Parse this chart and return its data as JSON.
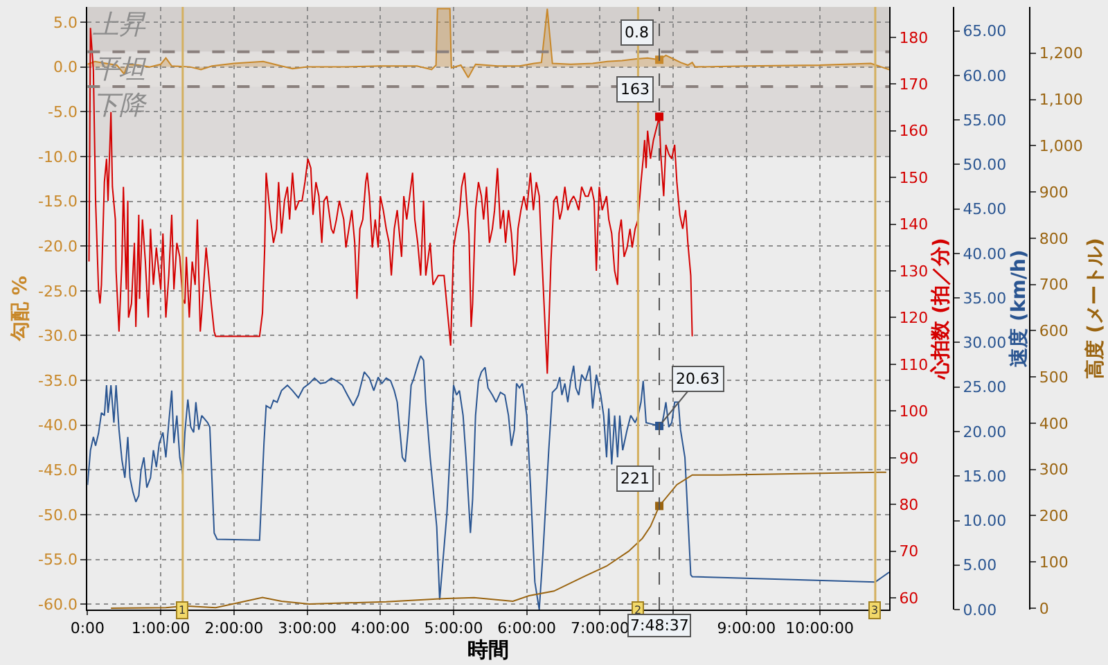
{
  "chart_data": [
    {
      "type": "line",
      "xlabel": "時間",
      "ylabel": "勾配 %",
      "y2label": "心拍数 (拍／分)",
      "y3label": "速度 (km/h)",
      "xlim": [
        0,
        10.95
      ],
      "xticks": [
        {
          "value": 0,
          "label": "0:00"
        },
        {
          "value": 1,
          "label": "1:00:00"
        },
        {
          "value": 2,
          "label": "2:00:00"
        },
        {
          "value": 3,
          "label": "3:00:00"
        },
        {
          "value": 4,
          "label": "4:00:00"
        },
        {
          "value": 5,
          "label": "5:00:00"
        },
        {
          "value": 6,
          "label": "6:00:00"
        },
        {
          "value": 7,
          "label": "7:00:00"
        },
        {
          "value": 8,
          "label": null
        },
        {
          "value": 9,
          "label": "9:00:00"
        },
        {
          "value": 10,
          "label": "10:00:00"
        }
      ],
      "ylim": [
        -60.6,
        6.7
      ],
      "yticks": [
        {
          "value": 5,
          "label": "5.0"
        },
        {
          "value": 0,
          "label": "0.0"
        },
        {
          "value": -5,
          "label": "-5.0"
        },
        {
          "value": -10,
          "label": "-10.0"
        },
        {
          "value": -15,
          "label": "-15.0"
        },
        {
          "value": -20,
          "label": "-20.0"
        },
        {
          "value": -25,
          "label": "-25.0"
        },
        {
          "value": -30,
          "label": "-30.0"
        },
        {
          "value": -35,
          "label": "-35.0"
        },
        {
          "value": -40,
          "label": "-40.0"
        },
        {
          "value": -45,
          "label": "-45.0"
        },
        {
          "value": -50,
          "label": "-50.0"
        },
        {
          "value": -55,
          "label": "-55.0"
        },
        {
          "value": -60,
          "label": "-60.0"
        }
      ],
      "y2lim": [
        57.5,
        186.5
      ],
      "y2ticks": [
        60,
        70,
        80,
        90,
        100,
        110,
        120,
        130,
        140,
        150,
        160,
        170,
        180
      ],
      "y3lim": [
        0,
        67.7
      ],
      "y3ticks": [
        {
          "value": 0,
          "label": "0.00"
        },
        {
          "value": 5,
          "label": "5.00"
        },
        {
          "value": 10,
          "label": "10.00"
        },
        {
          "value": 15,
          "label": "15.00"
        },
        {
          "value": 20,
          "label": "20.00"
        },
        {
          "value": 25,
          "label": "25.00"
        },
        {
          "value": 30,
          "label": "30.00"
        },
        {
          "value": 35,
          "label": "35.00"
        },
        {
          "value": 40,
          "label": "40.00"
        },
        {
          "value": 45,
          "label": "45.00"
        },
        {
          "value": 50,
          "label": "50.00"
        },
        {
          "value": 55,
          "label": "55.00"
        },
        {
          "value": 60,
          "label": "60.00"
        },
        {
          "value": 65,
          "label": "65.00"
        }
      ],
      "grid": true,
      "bands": [
        {
          "axis": "y",
          "from": 1.7,
          "to": 6.7,
          "label": "上昇",
          "color": "#d3cfcd"
        },
        {
          "axis": "y",
          "from": -2.2,
          "to": 1.7,
          "label": "平坦",
          "color": "#e2dfdd"
        },
        {
          "axis": "y",
          "from": -10,
          "to": -2.2,
          "label": "下降",
          "color": "#dcd9d8"
        }
      ],
      "ref_lines": [
        {
          "axis": "y",
          "value": 1.7,
          "color": "#8a807d",
          "line_style": "dashed"
        },
        {
          "axis": "y",
          "value": -2.2,
          "color": "#8a807d",
          "line_style": "dashed"
        },
        {
          "axis": "x",
          "value": 1.3,
          "color": "#d4b060",
          "line_style": "solid"
        },
        {
          "axis": "x",
          "value": 7.52,
          "color": "#d4b060",
          "line_style": "solid"
        },
        {
          "axis": "x",
          "value": 10.76,
          "color": "#d4b060",
          "line_style": "solid"
        },
        {
          "axis": "x",
          "value": 7.81,
          "color": "#555555",
          "line_style": "dashed"
        }
      ],
      "annotations": [
        {
          "text": "1",
          "x": 1.3,
          "y": -60.6
        },
        {
          "text": "2",
          "x": 7.52,
          "y": -60.6
        },
        {
          "text": "3",
          "x": 10.76,
          "y": -60.6
        },
        {
          "text": "7:48:37",
          "x": 7.81,
          "y": -60.6
        }
      ],
      "series": [
        {
          "type": "area",
          "axis": "y",
          "color": "#c8882a",
          "x": [
            0.0,
            0.1,
            0.25,
            0.4,
            0.5,
            0.55,
            0.7,
            0.85,
            1.0,
            1.07,
            1.15,
            1.4,
            1.55,
            1.7,
            2.0,
            2.4,
            2.6,
            2.8,
            3.0,
            3.5,
            4.0,
            4.5,
            4.7,
            4.76,
            4.78,
            4.95,
            4.97,
            5.1,
            5.2,
            5.3,
            5.6,
            5.9,
            6.1,
            6.2,
            6.28,
            6.35,
            6.6,
            6.9,
            7.1,
            7.3,
            7.5,
            7.65,
            7.81,
            7.9,
            8.0,
            8.1,
            8.2,
            8.26,
            8.3,
            9.0,
            10.0,
            10.7,
            10.95
          ],
          "values": [
            0.3,
            0.6,
            0.4,
            0.2,
            -0.8,
            0.3,
            0.2,
            0.0,
            0.3,
            1.0,
            0.1,
            0.0,
            -0.3,
            0.1,
            0.4,
            0.6,
            0.2,
            -0.2,
            0.0,
            0.0,
            0.1,
            0.1,
            -0.3,
            0.2,
            6.5,
            6.5,
            -0.1,
            0.2,
            -1.2,
            0.3,
            0.1,
            0.1,
            0.4,
            0.5,
            6.5,
            0.4,
            0.3,
            0.4,
            0.6,
            0.7,
            0.9,
            1.0,
            0.8,
            1.3,
            0.9,
            0.5,
            0.2,
            0.5,
            0.0,
            0.1,
            0.2,
            0.4,
            -0.3
          ],
          "value_labels": [
            null,
            null,
            null,
            null,
            null,
            null,
            null,
            null,
            null,
            null,
            null,
            null,
            null,
            null,
            null,
            null,
            null,
            null,
            null,
            null,
            null,
            null,
            null,
            null,
            null,
            null,
            null,
            null,
            null,
            null,
            null,
            null,
            null,
            null,
            null,
            null,
            null,
            null,
            null,
            null,
            null,
            null,
            "0.8",
            null,
            null,
            null,
            null,
            null,
            null,
            null,
            null,
            null,
            null
          ]
        },
        {
          "axis": "y2",
          "color": "#d40000",
          "x": [
            0.02,
            0.04,
            0.08,
            0.11,
            0.15,
            0.17,
            0.19,
            0.23,
            0.26,
            0.28,
            0.32,
            0.34,
            0.38,
            0.39,
            0.43,
            0.47,
            0.49,
            0.53,
            0.55,
            0.56,
            0.6,
            0.64,
            0.66,
            0.7,
            0.71,
            0.75,
            0.79,
            0.83,
            0.86,
            0.9,
            0.94,
            0.96,
            1.0,
            1.03,
            1.07,
            1.11,
            1.15,
            1.18,
            1.22,
            1.26,
            1.3,
            1.33,
            1.35,
            1.39,
            1.43,
            1.47,
            1.5,
            1.54,
            1.56,
            1.62,
            1.65,
            1.69,
            1.73,
            1.75,
            2.35,
            2.39,
            2.42,
            2.44,
            2.5,
            2.54,
            2.58,
            2.61,
            2.65,
            2.69,
            2.73,
            2.76,
            2.8,
            2.84,
            2.89,
            2.93,
            2.97,
            3.01,
            3.05,
            3.08,
            3.12,
            3.16,
            3.2,
            3.23,
            3.27,
            3.33,
            3.36,
            3.4,
            3.44,
            3.5,
            3.53,
            3.57,
            3.61,
            3.65,
            3.68,
            3.72,
            3.76,
            3.8,
            3.82,
            3.85,
            3.89,
            3.93,
            3.97,
            4.0,
            4.04,
            4.08,
            4.12,
            4.15,
            4.19,
            4.23,
            4.29,
            4.32,
            4.36,
            4.4,
            4.44,
            4.47,
            4.51,
            4.55,
            4.59,
            4.62,
            4.68,
            4.72,
            4.79,
            4.87,
            4.96,
            5.0,
            5.04,
            5.08,
            5.11,
            5.15,
            5.21,
            5.24,
            5.26,
            5.3,
            5.34,
            5.38,
            5.41,
            5.45,
            5.49,
            5.53,
            5.56,
            5.6,
            5.64,
            5.68,
            5.71,
            5.75,
            5.79,
            5.83,
            5.86,
            5.88,
            5.92,
            5.96,
            6.0,
            6.05,
            6.09,
            6.13,
            6.17,
            6.2,
            6.28,
            6.33,
            6.37,
            6.41,
            6.45,
            6.48,
            6.52,
            6.56,
            6.6,
            6.64,
            6.67,
            6.71,
            6.75,
            6.8,
            6.84,
            6.88,
            6.92,
            6.95,
            6.99,
            7.03,
            7.09,
            7.12,
            7.16,
            7.2,
            7.24,
            7.26,
            7.29,
            7.33,
            7.37,
            7.41,
            7.44,
            7.48,
            7.52,
            7.56,
            7.59,
            7.61,
            7.63,
            7.65,
            7.69,
            7.73,
            7.81,
            7.83,
            7.87,
            7.9,
            7.94,
            7.98,
            8.02,
            8.05,
            8.09,
            8.13,
            8.17,
            8.2,
            8.24,
            8.26
          ],
          "values": [
            132,
            182,
            173,
            145,
            126,
            123,
            127,
            149,
            154,
            145,
            164,
            148,
            141,
            130,
            117,
            132,
            148,
            126,
            145,
            120,
            123,
            136,
            118,
            142,
            124,
            141,
            132,
            120,
            139,
            127,
            135,
            132,
            126,
            138,
            120,
            129,
            142,
            126,
            136,
            133,
            124,
            123,
            133,
            120,
            132,
            127,
            141,
            117,
            121,
            135,
            130,
            123,
            117,
            116,
            116,
            121,
            135,
            151,
            141,
            136,
            139,
            149,
            138,
            145,
            148,
            141,
            151,
            143,
            145,
            145,
            149,
            154,
            152,
            142,
            149,
            146,
            136,
            145,
            146,
            139,
            138,
            141,
            145,
            141,
            135,
            139,
            143,
            136,
            124,
            139,
            141,
            149,
            151,
            146,
            135,
            141,
            135,
            146,
            143,
            139,
            136,
            129,
            139,
            143,
            133,
            146,
            141,
            146,
            151,
            141,
            136,
            129,
            145,
            129,
            136,
            127,
            129,
            129,
            114,
            135,
            139,
            142,
            148,
            151,
            138,
            118,
            123,
            143,
            149,
            146,
            141,
            148,
            136,
            139,
            143,
            152,
            139,
            143,
            136,
            143,
            138,
            129,
            132,
            139,
            143,
            146,
            143,
            151,
            143,
            149,
            146,
            135,
            108,
            132,
            145,
            146,
            141,
            143,
            148,
            143,
            145,
            146,
            145,
            143,
            148,
            146,
            146,
            148,
            145,
            130,
            148,
            143,
            146,
            141,
            138,
            130,
            127,
            138,
            141,
            133,
            135,
            139,
            135,
            139,
            141,
            149,
            154,
            158,
            152,
            160,
            154,
            158,
            163,
            155,
            146,
            157,
            155,
            154,
            157,
            149,
            142,
            139,
            143,
            136,
            129,
            116
          ],
          "value_labels": [
            null,
            null,
            null,
            null,
            null,
            null,
            null,
            null,
            null,
            null,
            null,
            null,
            null,
            null,
            null,
            null,
            null,
            null,
            null,
            null,
            null,
            null,
            null,
            null,
            null,
            null,
            null,
            null,
            null,
            null,
            null,
            null,
            null,
            null,
            null,
            null,
            null,
            null,
            null,
            null,
            null,
            null,
            null,
            null,
            null,
            null,
            null,
            null,
            null,
            null,
            null,
            null,
            null,
            null,
            null,
            null,
            null,
            null,
            null,
            null,
            null,
            null,
            null,
            null,
            null,
            null,
            null,
            null,
            null,
            null,
            null,
            null,
            null,
            null,
            null,
            null,
            null,
            null,
            null,
            null,
            null,
            null,
            null,
            null,
            null,
            null,
            null,
            null,
            null,
            null,
            null,
            null,
            null,
            null,
            null,
            null,
            null,
            null,
            null,
            null,
            null,
            null,
            null,
            null,
            null,
            null,
            null,
            null,
            null,
            null,
            null,
            null,
            null,
            null,
            null,
            null,
            null,
            null,
            null,
            null,
            null,
            null,
            null,
            null,
            null,
            null,
            null,
            null,
            null,
            null,
            null,
            null,
            null,
            null,
            null,
            null,
            null,
            null,
            null,
            null,
            null,
            null,
            null,
            null,
            null,
            null,
            null,
            null,
            null,
            null,
            null,
            null,
            null,
            null,
            null,
            null,
            null,
            null,
            null,
            null,
            null,
            null,
            null,
            null,
            null,
            null,
            null,
            null,
            null,
            null,
            null,
            null,
            null,
            null,
            null,
            null,
            null,
            null,
            null,
            null,
            null,
            null,
            null,
            null,
            null,
            null,
            null,
            null,
            null,
            null,
            null,
            null,
            "163",
            null,
            null,
            null,
            null,
            null,
            null,
            null,
            null,
            null,
            null,
            null,
            null,
            null
          ]
        },
        {
          "axis": "y3",
          "color": "#2a5591",
          "x": [
            0.0,
            0.04,
            0.08,
            0.11,
            0.15,
            0.19,
            0.23,
            0.26,
            0.28,
            0.32,
            0.36,
            0.39,
            0.43,
            0.47,
            0.51,
            0.55,
            0.58,
            0.62,
            0.66,
            0.7,
            0.73,
            0.77,
            0.81,
            0.86,
            0.9,
            0.94,
            0.98,
            1.03,
            1.07,
            1.11,
            1.15,
            1.18,
            1.22,
            1.26,
            1.3,
            1.33,
            1.37,
            1.41,
            1.45,
            1.48,
            1.52,
            1.56,
            1.64,
            1.67,
            1.73,
            1.77,
            2.35,
            2.41,
            2.44,
            2.5,
            2.54,
            2.59,
            2.65,
            2.73,
            2.8,
            2.88,
            2.95,
            3.03,
            3.1,
            3.18,
            3.25,
            3.33,
            3.4,
            3.48,
            3.55,
            3.63,
            3.7,
            3.78,
            3.85,
            3.91,
            3.97,
            4.02,
            4.08,
            4.14,
            4.19,
            4.23,
            4.27,
            4.3,
            4.34,
            4.38,
            4.42,
            4.45,
            4.51,
            4.55,
            4.59,
            4.62,
            4.68,
            4.77,
            4.81,
            4.91,
            5.0,
            5.04,
            5.08,
            5.13,
            5.17,
            5.23,
            5.26,
            5.3,
            5.34,
            5.38,
            5.43,
            5.47,
            5.53,
            5.58,
            5.64,
            5.7,
            5.75,
            5.79,
            5.83,
            5.86,
            5.9,
            5.94,
            6.0,
            6.05,
            6.11,
            6.17,
            6.22,
            6.3,
            6.35,
            6.41,
            6.45,
            6.48,
            6.52,
            6.56,
            6.6,
            6.64,
            6.67,
            6.71,
            6.75,
            6.8,
            6.86,
            6.9,
            6.95,
            7.01,
            7.05,
            7.09,
            7.12,
            7.16,
            7.2,
            7.24,
            7.27,
            7.31,
            7.37,
            7.42,
            7.48,
            7.52,
            7.56,
            7.59,
            7.63,
            7.81,
            7.83,
            7.87,
            7.9,
            7.94,
            7.98,
            8.02,
            8.07,
            8.1,
            8.16,
            8.24,
            8.26,
            10.76,
            10.95
          ],
          "values": [
            14.0,
            17.9,
            19.4,
            18.4,
            19.8,
            22.1,
            21.8,
            25.2,
            22.1,
            25.2,
            21.0,
            25.2,
            20.2,
            16.8,
            14.8,
            19.4,
            14.8,
            13.2,
            12.1,
            12.8,
            15.6,
            17.1,
            13.7,
            14.8,
            17.9,
            16.0,
            18.7,
            19.9,
            17.1,
            21.0,
            24.6,
            18.7,
            21.8,
            17.1,
            15.2,
            19.9,
            23.6,
            20.5,
            19.9,
            23.3,
            20.2,
            21.8,
            21.0,
            20.5,
            8.6,
            7.9,
            7.8,
            18.7,
            22.9,
            22.6,
            23.5,
            23.3,
            24.6,
            25.2,
            24.6,
            23.8,
            24.9,
            25.4,
            26.0,
            25.4,
            25.5,
            26.0,
            25.7,
            25.2,
            24.1,
            22.9,
            24.1,
            26.7,
            26.0,
            24.6,
            26.1,
            25.4,
            26.0,
            25.7,
            24.6,
            23.3,
            19.8,
            17.1,
            16.6,
            20.2,
            25.2,
            25.8,
            27.5,
            28.5,
            28.0,
            23.3,
            17.1,
            9.3,
            1.1,
            10.9,
            25.2,
            24.1,
            24.6,
            21.8,
            17.1,
            8.6,
            12.4,
            21.8,
            25.7,
            26.7,
            27.2,
            24.9,
            24.1,
            23.3,
            24.4,
            24.1,
            21.8,
            18.4,
            20.2,
            25.4,
            24.9,
            25.4,
            21.8,
            14.0,
            3.1,
            0.0,
            6.2,
            17.9,
            24.4,
            24.9,
            26.1,
            24.1,
            25.4,
            23.3,
            25.7,
            27.4,
            24.9,
            24.1,
            26.4,
            25.7,
            27.4,
            22.6,
            26.4,
            24.1,
            21.8,
            17.1,
            22.6,
            16.3,
            21.8,
            17.1,
            21.8,
            17.9,
            20.2,
            21.8,
            21.0,
            21.8,
            23.3,
            25.7,
            21.0,
            20.63,
            20.2,
            21.8,
            23.3,
            20.5,
            21.0,
            23.3,
            23.3,
            20.2,
            17.1,
            3.9,
            3.7,
            3.1,
            4.2
          ],
          "value_labels": [
            null,
            null,
            null,
            null,
            null,
            null,
            null,
            null,
            null,
            null,
            null,
            null,
            null,
            null,
            null,
            null,
            null,
            null,
            null,
            null,
            null,
            null,
            null,
            null,
            null,
            null,
            null,
            null,
            null,
            null,
            null,
            null,
            null,
            null,
            null,
            null,
            null,
            null,
            null,
            null,
            null,
            null,
            null,
            null,
            null,
            null,
            null,
            null,
            null,
            null,
            null,
            null,
            null,
            null,
            null,
            null,
            null,
            null,
            null,
            null,
            null,
            null,
            null,
            null,
            null,
            null,
            null,
            null,
            null,
            null,
            null,
            null,
            null,
            null,
            null,
            null,
            null,
            null,
            null,
            null,
            null,
            null,
            null,
            null,
            null,
            null,
            null,
            null,
            null,
            null,
            null,
            null,
            null,
            null,
            null,
            null,
            null,
            null,
            null,
            null,
            null,
            null,
            null,
            null,
            null,
            null,
            null,
            null,
            null,
            null,
            null,
            null,
            null,
            null,
            null,
            null,
            null,
            null,
            null,
            null,
            null,
            null,
            null,
            null,
            null,
            null,
            null,
            null,
            null,
            null,
            null,
            null,
            null,
            null,
            null,
            null,
            null,
            null,
            null,
            null,
            null,
            null,
            null,
            null,
            null,
            null,
            null,
            null,
            null,
            "20.63",
            null,
            null,
            null,
            null,
            null,
            null,
            null,
            null,
            null,
            null,
            null,
            null,
            null
          ]
        }
      ]
    },
    {
      "type": "line",
      "xlim": [
        0,
        10.95
      ],
      "tick_labels": "y",
      "ylabel": "高度 (メートル)",
      "ylim": [
        -3,
        1300
      ],
      "yticks": [
        0,
        100,
        200,
        300,
        400,
        500,
        600,
        700,
        800,
        900,
        {
          "value": 1000,
          "label": "1,000"
        },
        {
          "value": 1100,
          "label": "1,100"
        },
        {
          "value": 1200,
          "label": "1,200"
        }
      ],
      "series": [
        {
          "color": "#9a6410",
          "x": [
            0.32,
            1.07,
            1.33,
            1.75,
            2.39,
            2.65,
            3.03,
            4.08,
            4.76,
            4.91,
            5.28,
            5.81,
            6.03,
            6.37,
            6.79,
            7.09,
            7.39,
            7.58,
            7.69,
            7.81,
            8.05,
            8.26,
            8.64,
            10.91
          ],
          "values": [
            0,
            1,
            5,
            1,
            23,
            15,
            9,
            14,
            20,
            21,
            23,
            15,
            27,
            37,
            69,
            91,
            123,
            151,
            177,
            221,
            267,
            288,
            288,
            294
          ],
          "value_labels": [
            null,
            null,
            null,
            null,
            null,
            null,
            null,
            null,
            null,
            null,
            null,
            null,
            null,
            null,
            null,
            null,
            null,
            null,
            null,
            "221",
            null,
            null,
            null,
            null
          ]
        }
      ]
    }
  ]
}
